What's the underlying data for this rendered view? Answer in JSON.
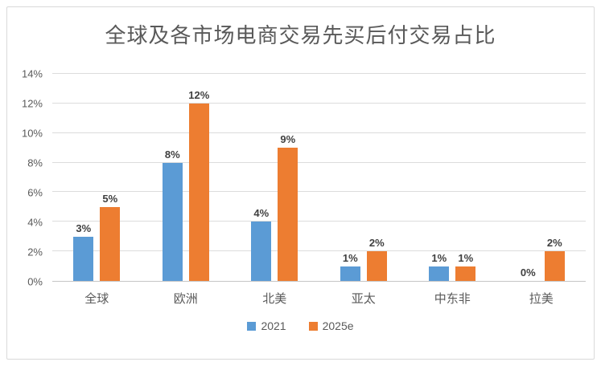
{
  "chart_data": {
    "type": "bar",
    "title": "全球及各市场电商交易先买后付交易占比",
    "categories": [
      "全球",
      "欧洲",
      "北美",
      "亚太",
      "中东非",
      "拉美"
    ],
    "series": [
      {
        "name": "2021",
        "color": "#5B9BD5",
        "values": [
          3,
          8,
          4,
          1,
          1,
          0
        ]
      },
      {
        "name": "2025e",
        "color": "#ED7D31",
        "values": [
          5,
          12,
          9,
          2,
          1,
          2
        ]
      }
    ],
    "xlabel": "",
    "ylabel": "",
    "ylim": [
      0,
      14
    ],
    "ytick_step": 2,
    "ytick_suffix": "%",
    "data_label_suffix": "%",
    "grid": true,
    "legend_position": "bottom"
  }
}
